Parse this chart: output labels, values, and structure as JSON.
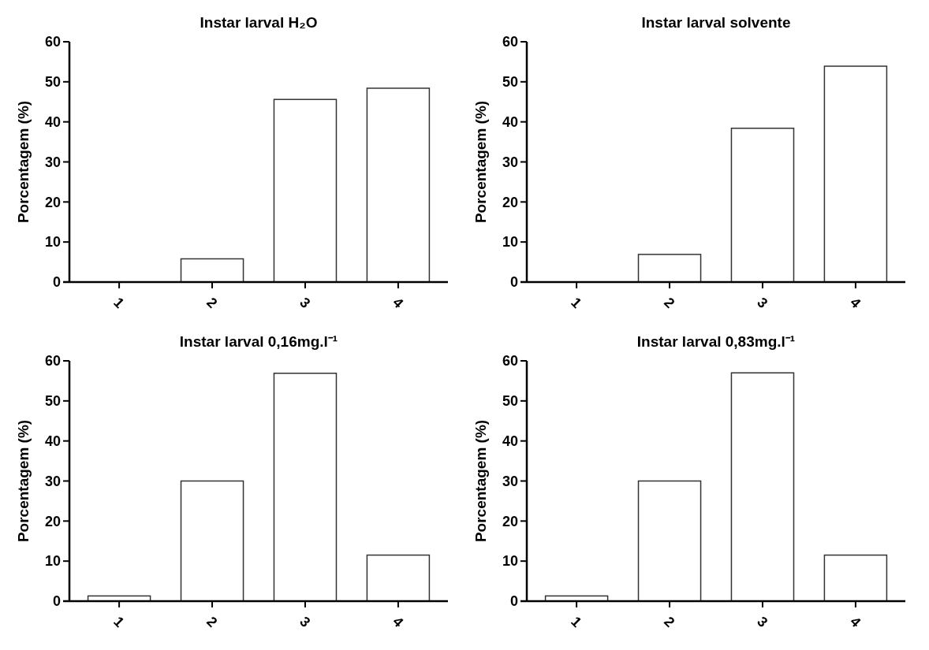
{
  "chart_data": [
    {
      "type": "bar",
      "title": "Instar larval H₂O",
      "ylabel": "Porcentagem (%)",
      "categories": [
        "1",
        "2",
        "3",
        "4"
      ],
      "values": [
        0,
        5.8,
        45.6,
        48.4
      ],
      "color": "#ffffff",
      "ylim": [
        0,
        60
      ],
      "yticks": [
        0,
        10,
        20,
        30,
        40,
        50,
        60
      ],
      "grid": false
    },
    {
      "type": "bar",
      "title": "Instar larval solvente",
      "ylabel": "Porcentagem (%)",
      "categories": [
        "1",
        "2",
        "3",
        "4"
      ],
      "values": [
        0,
        6.9,
        38.4,
        53.9
      ],
      "color": "#ffffff",
      "ylim": [
        0,
        60
      ],
      "yticks": [
        0,
        10,
        20,
        30,
        40,
        50,
        60
      ],
      "grid": false
    },
    {
      "type": "bar",
      "title": "Instar larval 0,16mg.l⁻¹",
      "ylabel": "Porcentagem (%)",
      "categories": [
        "1",
        "2",
        "3",
        "4"
      ],
      "values": [
        1.3,
        30,
        56.9,
        11.5
      ],
      "color": "#ffffff",
      "ylim": [
        0,
        60
      ],
      "yticks": [
        0,
        10,
        20,
        30,
        40,
        50,
        60
      ],
      "grid": false
    },
    {
      "type": "bar",
      "title": "Instar larval 0,83mg.l⁻¹",
      "ylabel": "Porcentagem (%)",
      "categories": [
        "1",
        "2",
        "3",
        "4"
      ],
      "values": [
        1.3,
        30,
        57,
        11.5
      ],
      "color": "#ffffff",
      "ylim": [
        0,
        60
      ],
      "yticks": [
        0,
        10,
        20,
        30,
        40,
        50,
        60
      ],
      "grid": false
    }
  ]
}
